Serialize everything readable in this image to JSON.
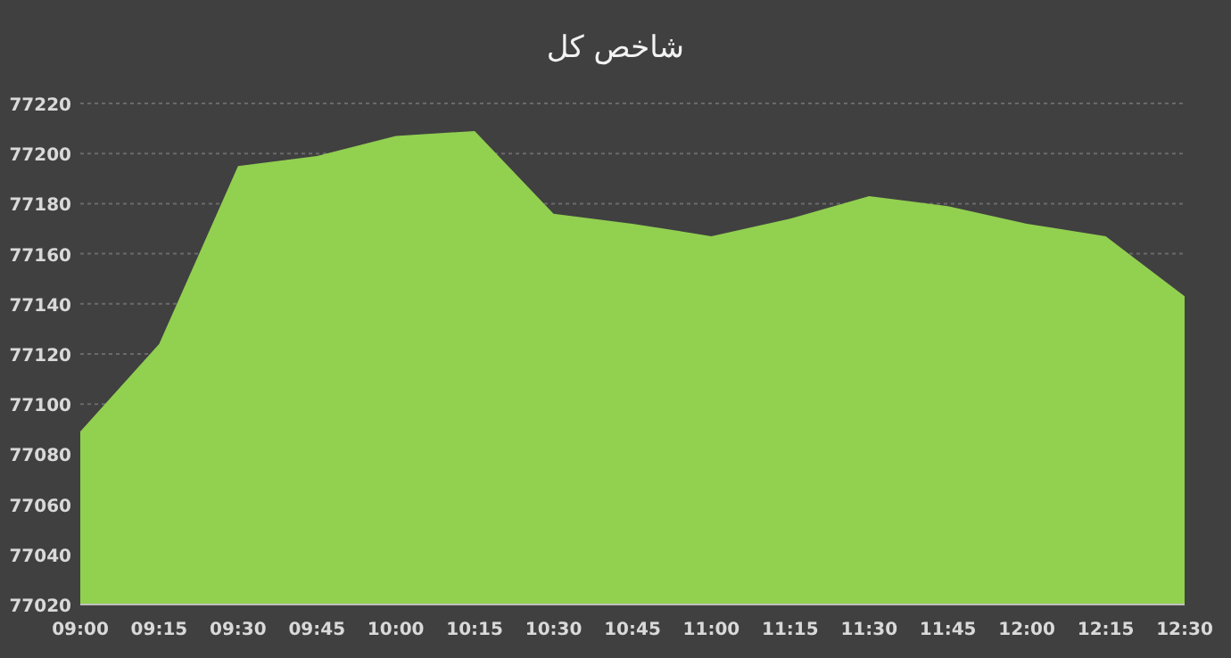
{
  "chart_data": {
    "type": "area",
    "title": "شاخص کل",
    "categories": [
      "09:00",
      "09:15",
      "09:30",
      "09:45",
      "10:00",
      "10:15",
      "10:30",
      "10:45",
      "11:00",
      "11:15",
      "11:30",
      "11:45",
      "12:00",
      "12:15",
      "12:30"
    ],
    "series": [
      {
        "color": "#92d050",
        "values": [
          77089,
          77124,
          77195,
          77199,
          77207,
          77209,
          77176,
          77172,
          77167,
          77174,
          77183,
          77179,
          77172,
          77167,
          77143
        ]
      }
    ],
    "ylim": [
      77020,
      77220
    ],
    "yticks": [
      77020,
      77040,
      77060,
      77080,
      77100,
      77120,
      77140,
      77160,
      77180,
      77200,
      77220
    ],
    "grid": "y"
  }
}
